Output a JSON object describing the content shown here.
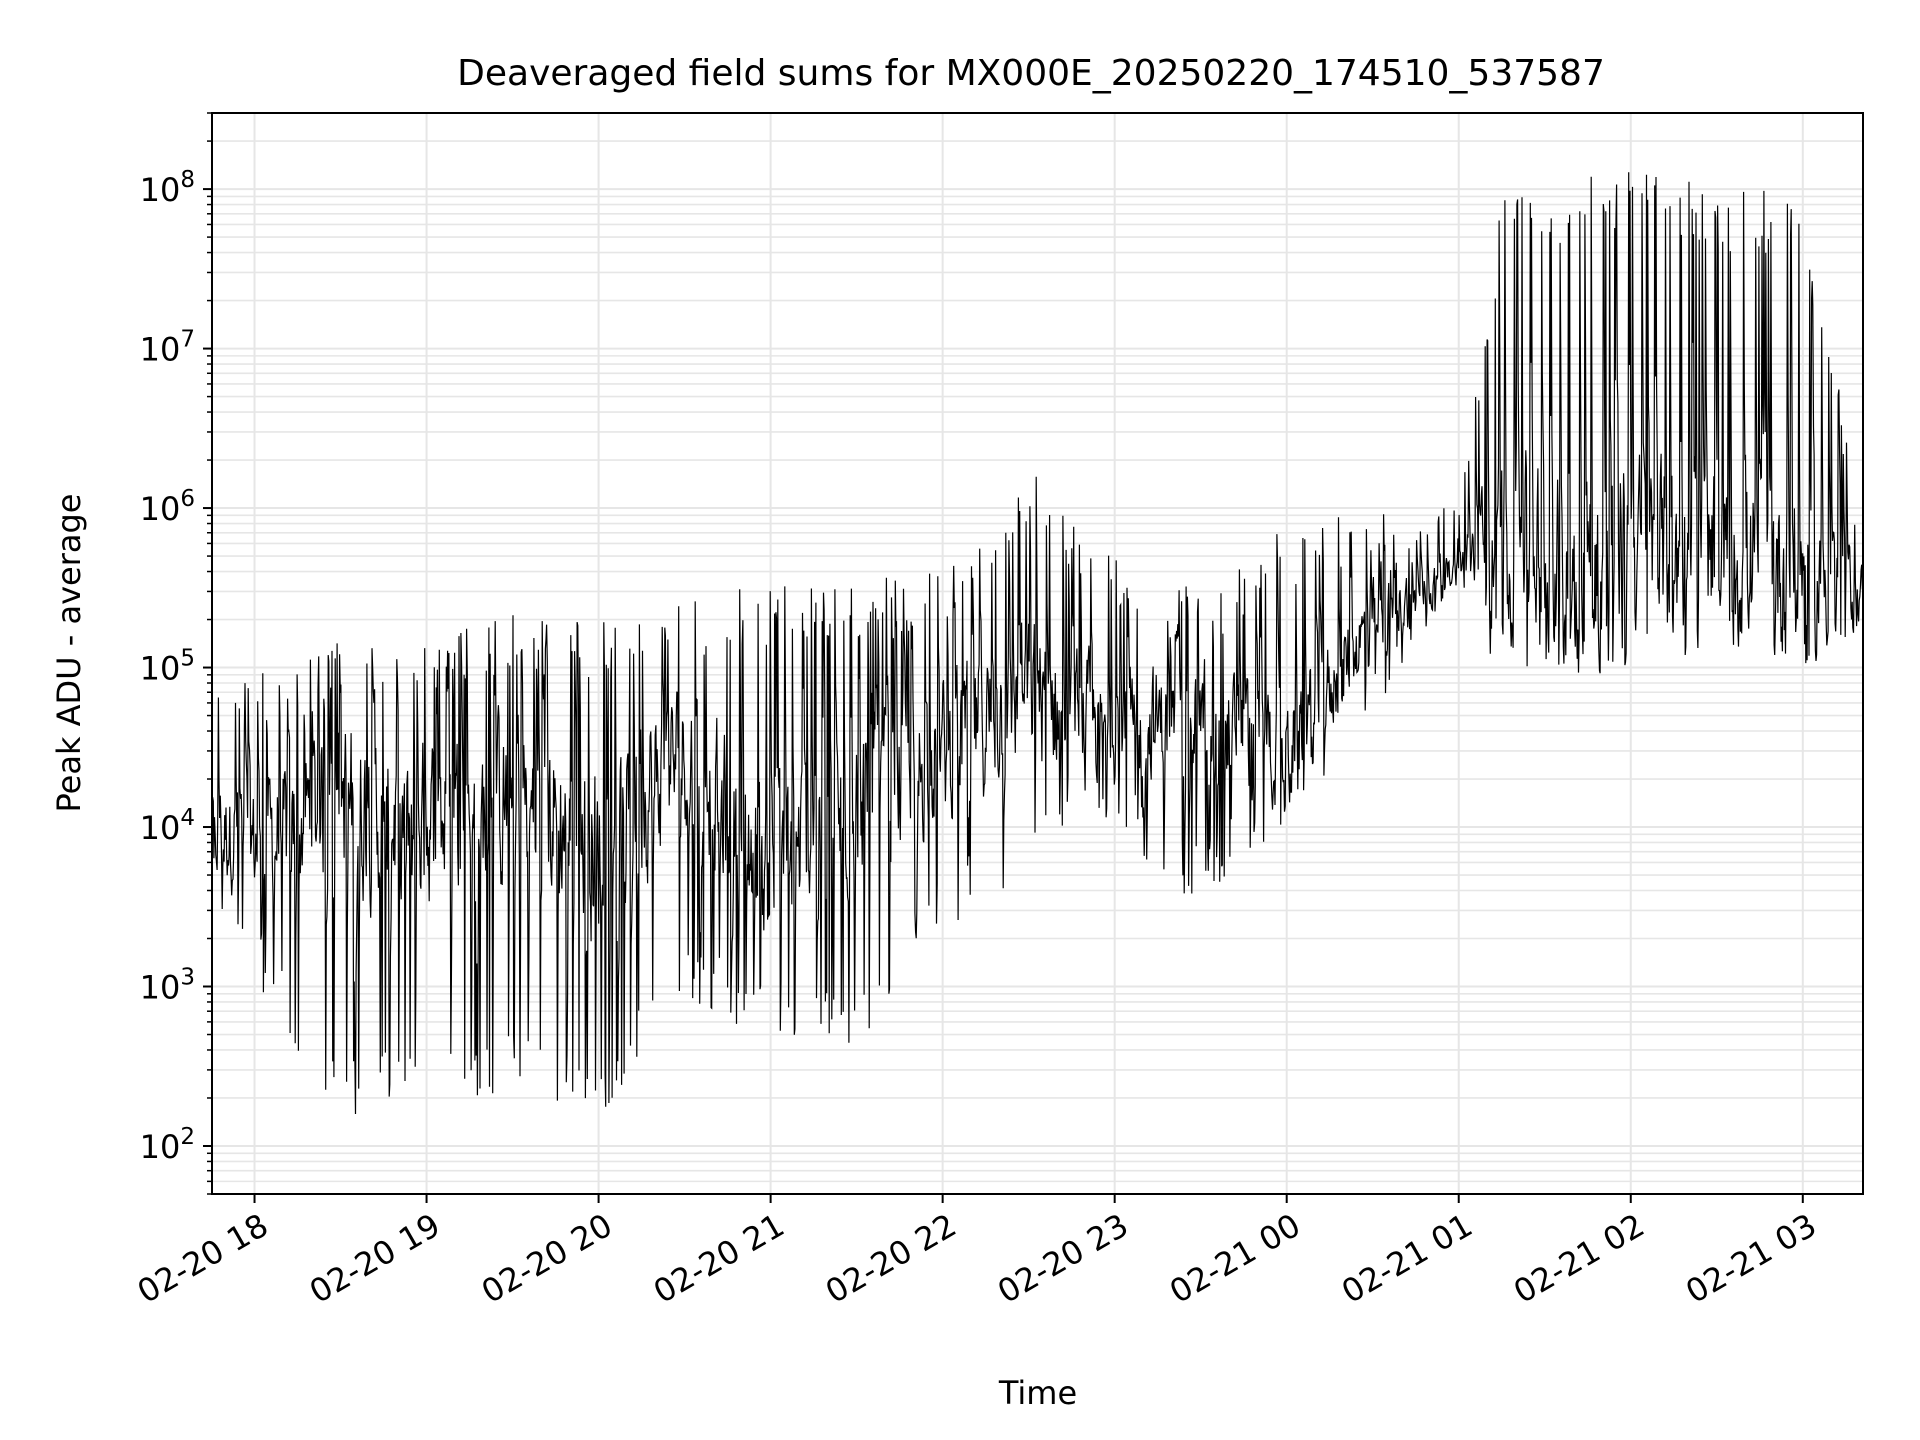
{
  "chart_data": {
    "type": "line",
    "title": "Deaveraged field sums for MX000E_20250220_174510_537587",
    "xlabel": "Time",
    "ylabel": "Peak ADU - average",
    "y_scale": "log",
    "ylim": [
      50,
      300000000
    ],
    "xlim": [
      "2025-02-20 17:45:10",
      "2025-02-21 03:21:00"
    ],
    "grid": true,
    "line_color": "#000000",
    "grid_color": "#e6e6e6",
    "x_ticks": [
      {
        "value": "2025-02-20 18:00",
        "label": "02-20 18"
      },
      {
        "value": "2025-02-20 19:00",
        "label": "02-20 19"
      },
      {
        "value": "2025-02-20 20:00",
        "label": "02-20 20"
      },
      {
        "value": "2025-02-20 21:00",
        "label": "02-20 21"
      },
      {
        "value": "2025-02-20 22:00",
        "label": "02-20 22"
      },
      {
        "value": "2025-02-20 23:00",
        "label": "02-20 23"
      },
      {
        "value": "2025-02-21 00:00",
        "label": "02-21 00"
      },
      {
        "value": "2025-02-21 01:00",
        "label": "02-21 01"
      },
      {
        "value": "2025-02-21 02:00",
        "label": "02-21 02"
      },
      {
        "value": "2025-02-21 03:00",
        "label": "02-21 03"
      }
    ],
    "y_ticks": [
      {
        "value": 100,
        "base": "10",
        "exp": "2"
      },
      {
        "value": 1000,
        "base": "10",
        "exp": "3"
      },
      {
        "value": 10000,
        "base": "10",
        "exp": "4"
      },
      {
        "value": 100000,
        "base": "10",
        "exp": "5"
      },
      {
        "value": 1000000,
        "base": "10",
        "exp": "6"
      },
      {
        "value": 10000000,
        "base": "10",
        "exp": "7"
      },
      {
        "value": 100000000,
        "base": "10",
        "exp": "8"
      }
    ],
    "series_envelope": {
      "x": [
        "2025-02-20 17:45",
        "2025-02-20 18:00",
        "2025-02-20 18:30",
        "2025-02-20 19:00",
        "2025-02-20 19:30",
        "2025-02-20 20:00",
        "2025-02-20 20:30",
        "2025-02-20 21:00",
        "2025-02-20 21:30",
        "2025-02-20 22:00",
        "2025-02-20 22:30",
        "2025-02-20 23:00",
        "2025-02-20 23:30",
        "2025-02-21 00:00",
        "2025-02-21 00:30",
        "2025-02-21 01:00",
        "2025-02-21 01:15",
        "2025-02-21 01:30",
        "2025-02-21 02:00",
        "2025-02-21 02:30",
        "2025-02-21 03:00",
        "2025-02-21 03:21"
      ],
      "median": [
        10000,
        8000,
        15000,
        10000,
        15000,
        8000,
        30000,
        5000,
        15000,
        30000,
        70000,
        40000,
        50000,
        30000,
        200000,
        400000,
        700000,
        500000,
        500000,
        500000,
        400000,
        300000
      ],
      "low": [
        3000,
        1000,
        150,
        200,
        200,
        150,
        800,
        400,
        400,
        2000,
        5000,
        8000,
        3000,
        10000,
        50000,
        300000,
        80000,
        100000,
        80000,
        150000,
        100000,
        150000
      ],
      "high": [
        100000,
        100000,
        150000,
        150000,
        220000,
        200000,
        250000,
        350000,
        350000,
        400000,
        2000000,
        500000,
        300000,
        800000,
        1000000,
        1000000,
        100000000,
        100000000,
        140000000,
        100000000,
        100000000,
        1000000
      ]
    }
  }
}
